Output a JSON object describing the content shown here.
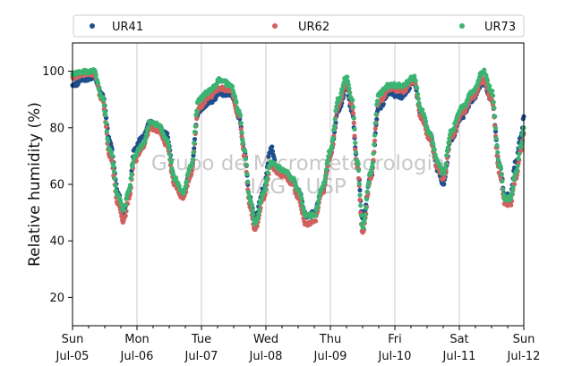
{
  "chart_data": {
    "type": "scatter",
    "title": "",
    "xlabel": "",
    "ylabel": "Relative humidity (%)",
    "ylim": [
      10,
      110
    ],
    "yticks": [
      20,
      40,
      60,
      80,
      100
    ],
    "xlim": [
      "2020-07-05",
      "2020-07-12"
    ],
    "xticks": [
      {
        "day": "Sun",
        "date": "Jul-05"
      },
      {
        "day": "Mon",
        "date": "Jul-06"
      },
      {
        "day": "Tue",
        "date": "Jul-07"
      },
      {
        "day": "Wed",
        "date": "Jul-08"
      },
      {
        "day": "Thu",
        "date": "Jul-09"
      },
      {
        "day": "Fri",
        "date": "Jul-10"
      },
      {
        "day": "Sat",
        "date": "Jul-11"
      },
      {
        "day": "Sun",
        "date": "Jul-12"
      }
    ],
    "grid": "vertical",
    "legend": "top",
    "watermark": [
      "Grupo de Micrometeorologia",
      "IAG / USP"
    ],
    "series": [
      {
        "name": "UR41",
        "color": "#1f4e8c",
        "points": [
          [
            "2020-07-05 00:00",
            95
          ],
          [
            "2020-07-05 04:00",
            97
          ],
          [
            "2020-07-05 08:00",
            98
          ],
          [
            "2020-07-05 11:00",
            92
          ],
          [
            "2020-07-05 14:00",
            75
          ],
          [
            "2020-07-05 17:00",
            57
          ],
          [
            "2020-07-05 19:00",
            50
          ],
          [
            "2020-07-05 21:00",
            57
          ],
          [
            "2020-07-05 23:00",
            72
          ],
          [
            "2020-07-06 02:00",
            77
          ],
          [
            "2020-07-06 05:00",
            82
          ],
          [
            "2020-07-06 08:00",
            80
          ],
          [
            "2020-07-06 11:00",
            78
          ],
          [
            "2020-07-06 14:00",
            62
          ],
          [
            "2020-07-06 17:00",
            56
          ],
          [
            "2020-07-06 20:00",
            65
          ],
          [
            "2020-07-06 23:00",
            86
          ],
          [
            "2020-07-07 03:00",
            89
          ],
          [
            "2020-07-07 07:00",
            92
          ],
          [
            "2020-07-07 11:00",
            92
          ],
          [
            "2020-07-07 14:00",
            84
          ],
          [
            "2020-07-07 16:00",
            72
          ],
          [
            "2020-07-07 18:00",
            55
          ],
          [
            "2020-07-07 20:00",
            48
          ],
          [
            "2020-07-07 23:00",
            58
          ],
          [
            "2020-07-08 02:00",
            73
          ],
          [
            "2020-07-08 04:00",
            66
          ],
          [
            "2020-07-08 07:00",
            64
          ],
          [
            "2020-07-08 10:00",
            62
          ],
          [
            "2020-07-08 12:00",
            58
          ],
          [
            "2020-07-08 15:00",
            49
          ],
          [
            "2020-07-08 18:00",
            50
          ],
          [
            "2020-07-08 21:00",
            58
          ],
          [
            "2020-07-09 00:00",
            70
          ],
          [
            "2020-07-09 03:00",
            86
          ],
          [
            "2020-07-09 06:00",
            94
          ],
          [
            "2020-07-09 08:00",
            86
          ],
          [
            "2020-07-09 10:00",
            68
          ],
          [
            "2020-07-09 12:00",
            48
          ],
          [
            "2020-07-09 15:00",
            62
          ],
          [
            "2020-07-09 18:00",
            87
          ],
          [
            "2020-07-09 22:00",
            92
          ],
          [
            "2020-07-10 03:00",
            91
          ],
          [
            "2020-07-10 07:00",
            96
          ],
          [
            "2020-07-10 10:00",
            84
          ],
          [
            "2020-07-10 13:00",
            78
          ],
          [
            "2020-07-10 16:00",
            65
          ],
          [
            "2020-07-10 18:00",
            60
          ],
          [
            "2020-07-10 21:00",
            76
          ],
          [
            "2020-07-11 01:00",
            84
          ],
          [
            "2020-07-11 05:00",
            90
          ],
          [
            "2020-07-11 09:00",
            96
          ],
          [
            "2020-07-11 12:00",
            90
          ],
          [
            "2020-07-11 15:00",
            67
          ],
          [
            "2020-07-11 17:00",
            56
          ],
          [
            "2020-07-11 19:00",
            56
          ],
          [
            "2020-07-11 21:00",
            68
          ],
          [
            "2020-07-11 23:00",
            77
          ],
          [
            "2020-07-12 00:00",
            84
          ]
        ]
      },
      {
        "name": "UR62",
        "color": "#d0605e",
        "points": [
          [
            "2020-07-05 00:00",
            98
          ],
          [
            "2020-07-05 04:00",
            99
          ],
          [
            "2020-07-05 08:00",
            99
          ],
          [
            "2020-07-05 11:00",
            90
          ],
          [
            "2020-07-05 14:00",
            70
          ],
          [
            "2020-07-05 17:00",
            53
          ],
          [
            "2020-07-05 19:00",
            47
          ],
          [
            "2020-07-05 21:00",
            55
          ],
          [
            "2020-07-05 23:00",
            68
          ],
          [
            "2020-07-06 02:00",
            73
          ],
          [
            "2020-07-06 05:00",
            80
          ],
          [
            "2020-07-06 08:00",
            79
          ],
          [
            "2020-07-06 11:00",
            74
          ],
          [
            "2020-07-06 14:00",
            60
          ],
          [
            "2020-07-06 17:00",
            55
          ],
          [
            "2020-07-06 20:00",
            63
          ],
          [
            "2020-07-06 23:00",
            87
          ],
          [
            "2020-07-07 03:00",
            91
          ],
          [
            "2020-07-07 07:00",
            94
          ],
          [
            "2020-07-07 11:00",
            93
          ],
          [
            "2020-07-07 14:00",
            84
          ],
          [
            "2020-07-07 16:00",
            70
          ],
          [
            "2020-07-07 18:00",
            52
          ],
          [
            "2020-07-07 20:00",
            44
          ],
          [
            "2020-07-07 23:00",
            55
          ],
          [
            "2020-07-08 02:00",
            67
          ],
          [
            "2020-07-08 04:00",
            64
          ],
          [
            "2020-07-08 07:00",
            63
          ],
          [
            "2020-07-08 10:00",
            60
          ],
          [
            "2020-07-08 12:00",
            55
          ],
          [
            "2020-07-08 15:00",
            46
          ],
          [
            "2020-07-08 18:00",
            47
          ],
          [
            "2020-07-08 21:00",
            57
          ],
          [
            "2020-07-09 00:00",
            70
          ],
          [
            "2020-07-09 03:00",
            88
          ],
          [
            "2020-07-09 06:00",
            96
          ],
          [
            "2020-07-09 08:00",
            88
          ],
          [
            "2020-07-09 10:00",
            66
          ],
          [
            "2020-07-09 12:00",
            43
          ],
          [
            "2020-07-09 15:00",
            62
          ],
          [
            "2020-07-09 18:00",
            89
          ],
          [
            "2020-07-09 22:00",
            94
          ],
          [
            "2020-07-10 03:00",
            93
          ],
          [
            "2020-07-10 07:00",
            97
          ],
          [
            "2020-07-10 10:00",
            83
          ],
          [
            "2020-07-10 13:00",
            76
          ],
          [
            "2020-07-10 16:00",
            66
          ],
          [
            "2020-07-10 18:00",
            62
          ],
          [
            "2020-07-10 21:00",
            77
          ],
          [
            "2020-07-11 01:00",
            85
          ],
          [
            "2020-07-11 05:00",
            91
          ],
          [
            "2020-07-11 09:00",
            97
          ],
          [
            "2020-07-11 12:00",
            90
          ],
          [
            "2020-07-11 15:00",
            64
          ],
          [
            "2020-07-11 17:00",
            53
          ],
          [
            "2020-07-11 19:00",
            53
          ],
          [
            "2020-07-11 21:00",
            62
          ],
          [
            "2020-07-11 23:00",
            72
          ],
          [
            "2020-07-12 00:00",
            78
          ]
        ]
      },
      {
        "name": "UR73",
        "color": "#3cb371",
        "points": [
          [
            "2020-07-05 00:00",
            99
          ],
          [
            "2020-07-05 04:00",
            100
          ],
          [
            "2020-07-05 08:00",
            100
          ],
          [
            "2020-07-05 11:00",
            91
          ],
          [
            "2020-07-05 14:00",
            72
          ],
          [
            "2020-07-05 17:00",
            56
          ],
          [
            "2020-07-05 19:00",
            51
          ],
          [
            "2020-07-05 21:00",
            58
          ],
          [
            "2020-07-05 23:00",
            70
          ],
          [
            "2020-07-06 02:00",
            74
          ],
          [
            "2020-07-06 05:00",
            82
          ],
          [
            "2020-07-06 08:00",
            81
          ],
          [
            "2020-07-06 11:00",
            76
          ],
          [
            "2020-07-06 14:00",
            62
          ],
          [
            "2020-07-06 17:00",
            57
          ],
          [
            "2020-07-06 20:00",
            66
          ],
          [
            "2020-07-06 23:00",
            90
          ],
          [
            "2020-07-07 03:00",
            93
          ],
          [
            "2020-07-07 07:00",
            97
          ],
          [
            "2020-07-07 11:00",
            95
          ],
          [
            "2020-07-07 14:00",
            86
          ],
          [
            "2020-07-07 16:00",
            72
          ],
          [
            "2020-07-07 18:00",
            55
          ],
          [
            "2020-07-07 20:00",
            46
          ],
          [
            "2020-07-07 23:00",
            57
          ],
          [
            "2020-07-08 02:00",
            68
          ],
          [
            "2020-07-08 04:00",
            66
          ],
          [
            "2020-07-08 07:00",
            65
          ],
          [
            "2020-07-08 10:00",
            62
          ],
          [
            "2020-07-08 12:00",
            58
          ],
          [
            "2020-07-08 15:00",
            49
          ],
          [
            "2020-07-08 18:00",
            49
          ],
          [
            "2020-07-08 21:00",
            59
          ],
          [
            "2020-07-09 00:00",
            72
          ],
          [
            "2020-07-09 03:00",
            90
          ],
          [
            "2020-07-09 06:00",
            98
          ],
          [
            "2020-07-09 08:00",
            90
          ],
          [
            "2020-07-09 10:00",
            68
          ],
          [
            "2020-07-09 12:00",
            45
          ],
          [
            "2020-07-09 15:00",
            64
          ],
          [
            "2020-07-09 18:00",
            92
          ],
          [
            "2020-07-09 22:00",
            95
          ],
          [
            "2020-07-10 03:00",
            95
          ],
          [
            "2020-07-10 07:00",
            98
          ],
          [
            "2020-07-10 10:00",
            86
          ],
          [
            "2020-07-10 13:00",
            78
          ],
          [
            "2020-07-10 16:00",
            68
          ],
          [
            "2020-07-10 18:00",
            64
          ],
          [
            "2020-07-10 21:00",
            79
          ],
          [
            "2020-07-11 01:00",
            87
          ],
          [
            "2020-07-11 05:00",
            93
          ],
          [
            "2020-07-11 09:00",
            100
          ],
          [
            "2020-07-11 12:00",
            93
          ],
          [
            "2020-07-11 15:00",
            67
          ],
          [
            "2020-07-11 17:00",
            55
          ],
          [
            "2020-07-11 19:00",
            55
          ],
          [
            "2020-07-11 21:00",
            64
          ],
          [
            "2020-07-11 23:00",
            74
          ],
          [
            "2020-07-12 00:00",
            80
          ]
        ]
      }
    ]
  }
}
